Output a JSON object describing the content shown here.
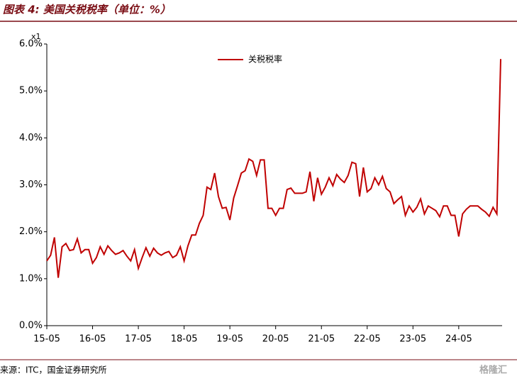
{
  "chart_data": {
    "type": "line",
    "title": "图表 4: 美国关税税率（单位：%）",
    "source": "来源：ITC，国金证券研究所",
    "watermark": "格隆汇",
    "axis_multiplier": "x1",
    "categories": [
      "15-05",
      null,
      null,
      null,
      null,
      null,
      null,
      null,
      null,
      null,
      null,
      null,
      "16-05",
      null,
      null,
      null,
      null,
      null,
      null,
      null,
      null,
      null,
      null,
      null,
      "17-05",
      null,
      null,
      null,
      null,
      null,
      null,
      null,
      null,
      null,
      null,
      null,
      "18-05",
      null,
      null,
      null,
      null,
      null,
      null,
      null,
      null,
      null,
      null,
      null,
      "19-05",
      null,
      null,
      null,
      null,
      null,
      null,
      null,
      null,
      null,
      null,
      null,
      "20-05",
      null,
      null,
      null,
      null,
      null,
      null,
      null,
      null,
      null,
      null,
      null,
      "21-05",
      null,
      null,
      null,
      null,
      null,
      null,
      null,
      null,
      null,
      null,
      null,
      "22-05",
      null,
      null,
      null,
      null,
      null,
      null,
      null,
      null,
      null,
      null,
      null,
      "23-05",
      null,
      null,
      null,
      null,
      null,
      null,
      null,
      null,
      null,
      null,
      null,
      "24-05",
      null,
      null,
      null,
      null,
      null,
      null,
      null,
      null,
      null,
      null,
      null
    ],
    "series": [
      {
        "name": "关税税率",
        "color": "#c00000",
        "values": [
          1.38,
          1.5,
          1.88,
          1.02,
          1.68,
          1.75,
          1.6,
          1.62,
          1.85,
          1.55,
          1.62,
          1.62,
          1.33,
          1.45,
          1.68,
          1.52,
          1.7,
          1.6,
          1.52,
          1.55,
          1.6,
          1.48,
          1.38,
          1.62,
          1.22,
          1.45,
          1.66,
          1.48,
          1.65,
          1.55,
          1.5,
          1.55,
          1.58,
          1.45,
          1.5,
          1.68,
          1.38,
          1.7,
          1.93,
          1.93,
          2.18,
          2.35,
          2.95,
          2.9,
          3.25,
          2.75,
          2.5,
          2.52,
          2.25,
          2.72,
          2.98,
          3.25,
          3.3,
          3.55,
          3.5,
          3.2,
          3.53,
          3.53,
          2.5,
          2.5,
          2.35,
          2.5,
          2.5,
          2.9,
          2.93,
          2.82,
          2.82,
          2.82,
          2.85,
          3.28,
          2.65,
          3.15,
          2.8,
          2.95,
          3.15,
          2.98,
          3.22,
          3.12,
          3.05,
          3.2,
          3.48,
          3.45,
          2.75,
          3.37,
          2.85,
          2.92,
          3.15,
          3.0,
          3.18,
          2.92,
          2.85,
          2.6,
          2.68,
          2.75,
          2.35,
          2.55,
          2.42,
          2.52,
          2.7,
          2.38,
          2.55,
          2.5,
          2.45,
          2.32,
          2.55,
          2.55,
          2.35,
          2.35,
          1.9,
          2.38,
          2.48,
          2.55,
          2.55,
          2.55,
          2.48,
          2.42,
          2.33,
          2.52,
          2.38,
          5.68
        ]
      }
    ],
    "ylim": [
      0,
      6
    ],
    "yticks": [
      {
        "value": 0,
        "label": "0.0%"
      },
      {
        "value": 1,
        "label": "1.0%"
      },
      {
        "value": 2,
        "label": "2.0%"
      },
      {
        "value": 3,
        "label": "3.0%"
      },
      {
        "value": 4,
        "label": "4.0%"
      },
      {
        "value": 5,
        "label": "5.0%"
      },
      {
        "value": 6,
        "label": "6.0%"
      }
    ],
    "grid": false,
    "legend": "top"
  }
}
